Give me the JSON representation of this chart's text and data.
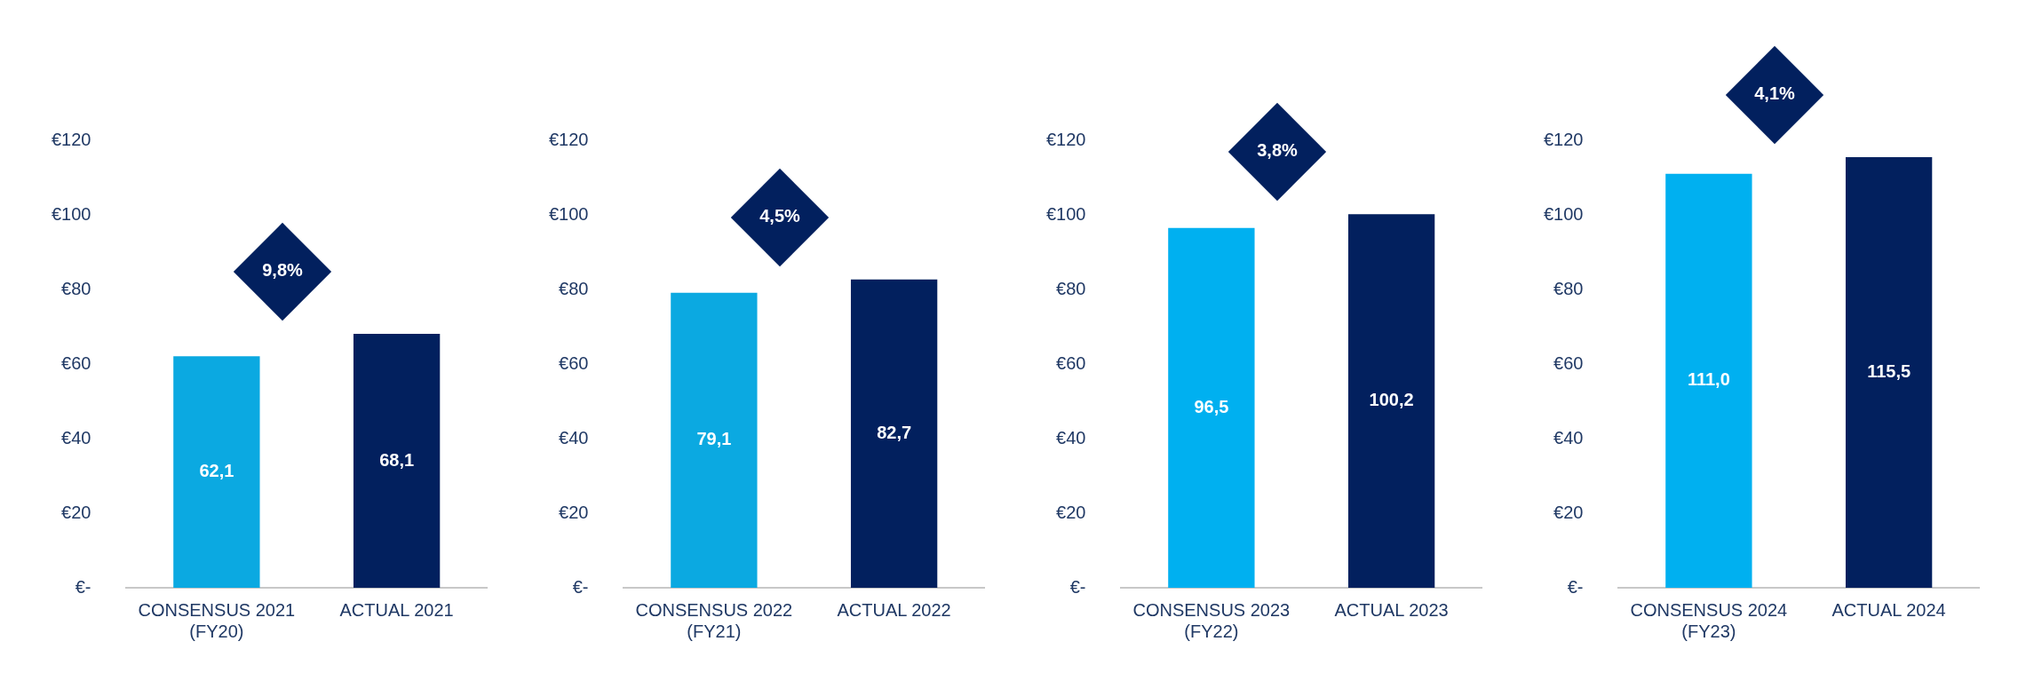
{
  "chart_data": [
    {
      "type": "bar",
      "categories": [
        "CONSENSUS 2021\n(FY20)",
        "ACTUAL 2021"
      ],
      "values": [
        62.1,
        68.1
      ],
      "colors": [
        "#0ba9e1",
        "#02205e"
      ],
      "value_labels": [
        "62,1",
        "68,1"
      ],
      "annotations": [
        "9,8%"
      ],
      "ylim": [
        0,
        120
      ],
      "yticks": [
        {
          "value": 0,
          "label": "€-"
        },
        {
          "value": 20,
          "label": "€20"
        },
        {
          "value": 40,
          "label": "€40"
        },
        {
          "value": 60,
          "label": "€60"
        },
        {
          "value": 80,
          "label": "€80"
        },
        {
          "value": 100,
          "label": "€100"
        },
        {
          "value": 120,
          "label": "€120"
        }
      ],
      "grid": false,
      "legend": false
    },
    {
      "type": "bar",
      "categories": [
        "CONSENSUS 2022\n(FY21)",
        "ACTUAL 2022"
      ],
      "values": [
        79.1,
        82.7
      ],
      "colors": [
        "#0ba9e1",
        "#02205e"
      ],
      "value_labels": [
        "79,1",
        "82,7"
      ],
      "annotations": [
        "4,5%"
      ],
      "ylim": [
        0,
        120
      ],
      "yticks": [
        {
          "value": 0,
          "label": "€-"
        },
        {
          "value": 20,
          "label": "€20"
        },
        {
          "value": 40,
          "label": "€40"
        },
        {
          "value": 60,
          "label": "€60"
        },
        {
          "value": 80,
          "label": "€80"
        },
        {
          "value": 100,
          "label": "€100"
        },
        {
          "value": 120,
          "label": "€120"
        }
      ],
      "grid": false,
      "legend": false
    },
    {
      "type": "bar",
      "categories": [
        "CONSENSUS 2023\n(FY22)",
        "ACTUAL 2023"
      ],
      "values": [
        96.5,
        100.2
      ],
      "colors": [
        "#00b0f0",
        "#02205e"
      ],
      "value_labels": [
        "96,5",
        "100,2"
      ],
      "annotations": [
        "3,8%"
      ],
      "ylim": [
        0,
        120
      ],
      "yticks": [
        {
          "value": 0,
          "label": "€-"
        },
        {
          "value": 20,
          "label": "€20"
        },
        {
          "value": 40,
          "label": "€40"
        },
        {
          "value": 60,
          "label": "€60"
        },
        {
          "value": 80,
          "label": "€80"
        },
        {
          "value": 100,
          "label": "€100"
        },
        {
          "value": 120,
          "label": "€120"
        }
      ],
      "grid": false,
      "legend": false
    },
    {
      "type": "bar",
      "categories": [
        "CONSENSUS 2024\n(FY23)",
        "ACTUAL 2024"
      ],
      "values": [
        111.0,
        115.5
      ],
      "colors": [
        "#00b0f0",
        "#02205e"
      ],
      "value_labels": [
        "111,0",
        "115,5"
      ],
      "annotations": [
        "4,1%"
      ],
      "ylim": [
        0,
        120
      ],
      "yticks": [
        {
          "value": 0,
          "label": "€-"
        },
        {
          "value": 20,
          "label": "€20"
        },
        {
          "value": 40,
          "label": "€40"
        },
        {
          "value": 60,
          "label": "€60"
        },
        {
          "value": 80,
          "label": "€80"
        },
        {
          "value": 100,
          "label": "€100"
        },
        {
          "value": 120,
          "label": "€120"
        }
      ],
      "grid": false,
      "legend": false
    }
  ]
}
